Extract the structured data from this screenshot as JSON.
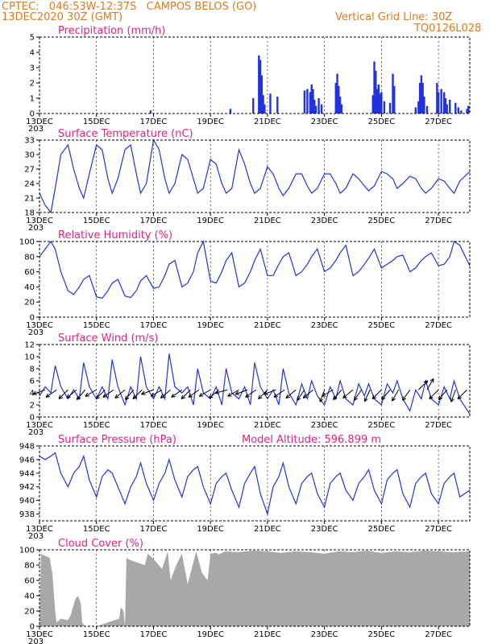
{
  "header": {
    "line1": "CPTEC:   046:53W-12:37S   CAMPOS BELOS (GO)",
    "line2": "13DEC2020 30Z (GMT)",
    "grid_note": "Vertical Grid Line: 30Z",
    "code": "TQ0126L028"
  },
  "colors": {
    "header": "#e07a1a",
    "title": "#e8207e",
    "series": "#2233dd",
    "cloud": "#a8a8a8"
  },
  "x_axis": {
    "labels": [
      "13DEC",
      "15DEC",
      "17DEC",
      "19DEC",
      "21DEC",
      "23DEC",
      "25DEC",
      "27DEC"
    ],
    "start_day": 13,
    "end_day": 28.1,
    "stub": "203"
  },
  "chart_data": [
    {
      "type": "bar",
      "title": "Precipitation   (mm/h)",
      "ylim": [
        0,
        5
      ],
      "yticks": [
        0,
        1,
        2,
        3,
        4,
        5
      ],
      "grid": "vertical-dashed",
      "series": [
        {
          "x": [
            16.9,
            19.7,
            20.5,
            20.7,
            20.75,
            20.8,
            20.85,
            20.9,
            21.1,
            21.35,
            22.3,
            22.4,
            22.5,
            22.55,
            22.6,
            22.65,
            22.7,
            22.8,
            22.9,
            23.4,
            23.45,
            23.5,
            23.55,
            23.6,
            24.7,
            24.75,
            24.8,
            24.85,
            24.9,
            24.95,
            25.0,
            25.1,
            25.3,
            25.4,
            25.45,
            26.2,
            26.3,
            26.35,
            26.4,
            26.45,
            26.5,
            26.6,
            26.95,
            27.0,
            27.1,
            27.2,
            27.25,
            27.3,
            27.4,
            27.6,
            27.7,
            27.8,
            28.0,
            28.05
          ],
          "values": [
            0.2,
            0.3,
            1.0,
            3.8,
            3.5,
            2.5,
            1.2,
            0.6,
            1.3,
            1.1,
            1.5,
            1.6,
            1.4,
            1.9,
            1.6,
            0.9,
            0.5,
            1.0,
            0.6,
            2.0,
            2.6,
            1.8,
            1.1,
            0.6,
            1.2,
            3.4,
            2.8,
            1.6,
            1.9,
            1.3,
            1.4,
            0.8,
            0.7,
            2.6,
            1.8,
            0.4,
            0.8,
            2.0,
            2.5,
            2.0,
            1.1,
            0.5,
            2.0,
            1.4,
            1.6,
            1.4,
            1.0,
            0.6,
            0.9,
            0.7,
            0.4,
            0.2,
            0.3,
            0.5
          ]
        }
      ]
    },
    {
      "type": "line",
      "title": "Surface Temperature  (nC)",
      "ylim": [
        18,
        33
      ],
      "yticks": [
        18,
        21,
        24,
        27,
        30,
        33
      ],
      "series": [
        {
          "x": [
            13.0,
            13.2,
            13.4,
            13.55,
            13.75,
            14.0,
            14.2,
            14.4,
            14.55,
            14.75,
            15.0,
            15.2,
            15.4,
            15.55,
            15.75,
            16.0,
            16.2,
            16.4,
            16.55,
            16.75,
            17.0,
            17.2,
            17.4,
            17.55,
            17.75,
            18.0,
            18.2,
            18.4,
            18.55,
            18.75,
            19.0,
            19.2,
            19.4,
            19.55,
            19.75,
            20.0,
            20.2,
            20.4,
            20.55,
            20.75,
            21.0,
            21.2,
            21.4,
            21.55,
            21.75,
            22.0,
            22.2,
            22.4,
            22.55,
            22.75,
            23.0,
            23.2,
            23.4,
            23.55,
            23.75,
            24.0,
            24.2,
            24.4,
            24.55,
            24.75,
            25.0,
            25.2,
            25.4,
            25.55,
            25.75,
            26.0,
            26.2,
            26.4,
            26.55,
            26.75,
            27.0,
            27.2,
            27.4,
            27.55,
            27.75,
            28.1
          ],
          "values": [
            22.0,
            19.5,
            18.0,
            23.0,
            30.0,
            32.0,
            27.0,
            23.0,
            21.0,
            26.0,
            32.0,
            31.0,
            25.0,
            22.0,
            25.0,
            31.0,
            32.0,
            26.0,
            22.0,
            24.0,
            33.0,
            31.0,
            25.0,
            22.0,
            24.0,
            30.0,
            29.0,
            25.0,
            22.0,
            23.0,
            29.0,
            28.0,
            24.0,
            22.0,
            23.0,
            31.0,
            28.0,
            24.0,
            22.0,
            23.0,
            27.5,
            26.0,
            23.0,
            21.5,
            23.0,
            26.0,
            26.0,
            23.5,
            22.0,
            23.0,
            26.0,
            26.0,
            24.0,
            22.0,
            23.0,
            26.0,
            25.0,
            23.5,
            22.5,
            23.5,
            26.5,
            26.0,
            25.0,
            23.0,
            24.0,
            25.5,
            25.0,
            23.0,
            22.0,
            23.0,
            25.0,
            24.5,
            23.0,
            22.0,
            24.5,
            26.5
          ]
        }
      ]
    },
    {
      "type": "line",
      "title": "Relative Humidity  (%)",
      "ylim": [
        0,
        100
      ],
      "yticks": [
        0,
        20,
        40,
        60,
        80,
        100
      ],
      "series": [
        {
          "x": [
            13.0,
            13.2,
            13.4,
            13.55,
            13.75,
            14.0,
            14.2,
            14.4,
            14.55,
            14.75,
            15.0,
            15.2,
            15.4,
            15.55,
            15.75,
            16.0,
            16.2,
            16.4,
            16.55,
            16.75,
            17.0,
            17.2,
            17.4,
            17.55,
            17.75,
            18.0,
            18.2,
            18.4,
            18.55,
            18.75,
            19.0,
            19.2,
            19.4,
            19.55,
            19.75,
            20.0,
            20.2,
            20.4,
            20.55,
            20.75,
            21.0,
            21.2,
            21.4,
            21.55,
            21.75,
            22.0,
            22.2,
            22.4,
            22.55,
            22.75,
            23.0,
            23.2,
            23.4,
            23.55,
            23.75,
            24.0,
            24.2,
            24.4,
            24.55,
            24.75,
            25.0,
            25.2,
            25.4,
            25.55,
            25.75,
            26.0,
            26.2,
            26.4,
            26.55,
            26.75,
            27.0,
            27.2,
            27.4,
            27.55,
            27.75,
            28.1
          ],
          "values": [
            80,
            90,
            100,
            90,
            60,
            35,
            30,
            40,
            50,
            55,
            27,
            25,
            35,
            45,
            50,
            28,
            26,
            35,
            48,
            55,
            38,
            40,
            55,
            70,
            75,
            40,
            45,
            60,
            85,
            100,
            48,
            45,
            60,
            75,
            85,
            40,
            45,
            60,
            75,
            90,
            55,
            55,
            70,
            80,
            85,
            55,
            60,
            70,
            80,
            90,
            60,
            65,
            75,
            85,
            95,
            55,
            60,
            70,
            78,
            90,
            65,
            70,
            75,
            80,
            82,
            60,
            65,
            75,
            80,
            85,
            68,
            70,
            80,
            100,
            95,
            68
          ]
        }
      ]
    },
    {
      "type": "line",
      "title": "Surface  Wind  (m/s)",
      "ylim": [
        0,
        12
      ],
      "yticks": [
        0,
        2,
        4,
        6,
        8,
        10,
        12
      ],
      "series": [
        {
          "x": [
            13.0,
            13.2,
            13.4,
            13.55,
            13.75,
            14.0,
            14.2,
            14.4,
            14.55,
            14.75,
            15.0,
            15.2,
            15.4,
            15.55,
            15.75,
            16.0,
            16.2,
            16.4,
            16.55,
            16.75,
            17.0,
            17.2,
            17.4,
            17.55,
            17.75,
            18.0,
            18.2,
            18.4,
            18.55,
            18.75,
            19.0,
            19.2,
            19.4,
            19.55,
            19.75,
            20.0,
            20.2,
            20.4,
            20.55,
            20.75,
            21.0,
            21.2,
            21.4,
            21.55,
            21.75,
            22.0,
            22.2,
            22.4,
            22.55,
            22.75,
            23.0,
            23.2,
            23.4,
            23.55,
            23.75,
            24.0,
            24.2,
            24.4,
            24.55,
            24.75,
            25.0,
            25.2,
            25.4,
            25.55,
            25.75,
            26.0,
            26.2,
            26.4,
            26.55,
            26.75,
            27.0,
            27.2,
            27.4,
            27.55,
            27.75,
            28.1
          ],
          "values": [
            3.5,
            5.0,
            4.0,
            8.5,
            5.0,
            3.0,
            4.5,
            3.0,
            9.0,
            5.0,
            3.0,
            5.0,
            3.0,
            9.5,
            5.0,
            2.0,
            5.0,
            3.0,
            10.0,
            5.0,
            3.0,
            5.0,
            3.0,
            10.5,
            5.0,
            4.0,
            5.0,
            2.0,
            8.0,
            4.0,
            3.0,
            5.0,
            2.0,
            8.0,
            4.0,
            3.0,
            5.0,
            2.0,
            9.0,
            5.0,
            3.0,
            4.5,
            2.0,
            8.0,
            4.0,
            2.0,
            5.5,
            3.0,
            6.0,
            3.5,
            2.0,
            5.0,
            3.0,
            6.0,
            3.0,
            2.0,
            5.5,
            3.5,
            5.5,
            3.0,
            2.0,
            5.5,
            4.0,
            6.0,
            3.0,
            1.0,
            4.5,
            3.0,
            6.0,
            3.0,
            2.0,
            5.0,
            3.0,
            6.0,
            3.0,
            0.5
          ]
        }
      ],
      "wind_arrow_days": [
        13.2,
        13.6,
        14.0,
        14.3,
        14.6,
        15.0,
        15.3,
        15.6,
        16.0,
        16.3,
        16.6,
        17.0,
        17.3,
        17.6,
        18.0,
        18.3,
        18.6,
        19.0,
        19.3,
        19.6,
        20.0,
        20.3,
        20.6,
        21.0,
        21.3,
        21.6,
        22.0,
        22.3,
        22.6,
        23.0,
        23.3,
        23.6,
        24.0,
        24.3,
        24.6,
        25.0,
        25.3,
        25.6,
        26.0,
        26.3,
        26.6,
        27.0,
        27.3,
        27.6,
        28.0
      ],
      "wind_arrow_dirs_deg": [
        200,
        215,
        225,
        220,
        230,
        210,
        225,
        215,
        220,
        230,
        225,
        200,
        210,
        220,
        215,
        225,
        215,
        210,
        220,
        195,
        210,
        200,
        215,
        225,
        200,
        215,
        220,
        235,
        220,
        250,
        210,
        230,
        220,
        235,
        245,
        225,
        230,
        240,
        235,
        45,
        60,
        225,
        230,
        250,
        225
      ]
    },
    {
      "type": "line",
      "title": "Surface  Pressure  (hPa)",
      "ylim": [
        937,
        948
      ],
      "yticks": [
        938,
        940,
        942,
        944,
        946,
        948
      ],
      "series": [
        {
          "x": [
            13.0,
            13.2,
            13.4,
            13.55,
            13.75,
            14.0,
            14.2,
            14.4,
            14.55,
            14.75,
            15.0,
            15.2,
            15.4,
            15.55,
            15.75,
            16.0,
            16.2,
            16.4,
            16.55,
            16.75,
            17.0,
            17.2,
            17.4,
            17.55,
            17.75,
            18.0,
            18.2,
            18.4,
            18.55,
            18.75,
            19.0,
            19.2,
            19.4,
            19.55,
            19.75,
            20.0,
            20.2,
            20.4,
            20.55,
            20.75,
            21.0,
            21.2,
            21.4,
            21.55,
            21.75,
            22.0,
            22.2,
            22.4,
            22.55,
            22.75,
            23.0,
            23.2,
            23.4,
            23.55,
            23.75,
            24.0,
            24.2,
            24.4,
            24.55,
            24.75,
            25.0,
            25.2,
            25.4,
            25.55,
            25.75,
            26.0,
            26.2,
            26.4,
            26.55,
            26.75,
            27.0,
            27.2,
            27.4,
            27.55,
            27.75,
            28.1
          ],
          "values": [
            946.5,
            946.0,
            946.5,
            947.0,
            944.0,
            942.0,
            944.0,
            945.0,
            946.5,
            943.0,
            940.5,
            943.5,
            944.5,
            944.0,
            942.0,
            939.5,
            942.0,
            943.5,
            945.5,
            942.5,
            940.0,
            942.5,
            944.0,
            946.0,
            943.0,
            940.5,
            943.5,
            944.5,
            945.0,
            942.0,
            939.5,
            942.5,
            943.5,
            944.0,
            941.5,
            939.0,
            942.5,
            944.0,
            945.0,
            941.0,
            938.0,
            942.0,
            943.5,
            945.5,
            942.0,
            939.5,
            942.5,
            943.5,
            944.0,
            941.0,
            939.0,
            942.5,
            943.5,
            944.0,
            941.5,
            940.0,
            942.5,
            943.5,
            944.5,
            941.5,
            939.5,
            943.0,
            944.0,
            944.5,
            941.0,
            939.0,
            942.5,
            943.5,
            944.0,
            941.0,
            939.5,
            942.5,
            943.5,
            944.0,
            940.5,
            941.5
          ]
        }
      ],
      "annotation": "Model Altitude: 596.899  m"
    },
    {
      "type": "area",
      "title": "Cloud Cover  (%)",
      "ylim": [
        0,
        100
      ],
      "yticks": [
        0,
        20,
        40,
        60,
        80,
        100
      ],
      "series": [
        {
          "x": [
            13.0,
            13.05,
            13.2,
            13.35,
            13.45,
            13.55,
            13.6,
            13.75,
            14.0,
            14.1,
            14.25,
            14.35,
            14.45,
            14.5,
            14.6,
            15.0,
            15.8,
            15.85,
            15.95,
            16.0,
            16.05,
            16.1,
            16.3,
            16.7,
            16.8,
            17.0,
            17.3,
            17.5,
            17.6,
            17.8,
            18.0,
            18.2,
            18.5,
            18.7,
            18.9,
            19.0,
            19.2,
            19.3,
            19.5,
            20.0,
            20.5,
            21.0,
            21.2,
            21.5,
            22.0,
            22.5,
            23.0,
            23.5,
            24.0,
            24.5,
            25.0,
            25.5,
            26.0,
            26.5,
            27.0,
            27.5,
            28.1
          ],
          "values": [
            0,
            95,
            92,
            90,
            70,
            20,
            5,
            10,
            8,
            15,
            35,
            40,
            30,
            5,
            0,
            0,
            10,
            25,
            20,
            0,
            90,
            88,
            85,
            80,
            95,
            88,
            75,
            98,
            60,
            80,
            95,
            55,
            98,
            70,
            60,
            95,
            96,
            94,
            98,
            97,
            99,
            98,
            97,
            96,
            98,
            97,
            95,
            98,
            97,
            99,
            96,
            98,
            97,
            99,
            98,
            97,
            98
          ]
        }
      ]
    }
  ]
}
